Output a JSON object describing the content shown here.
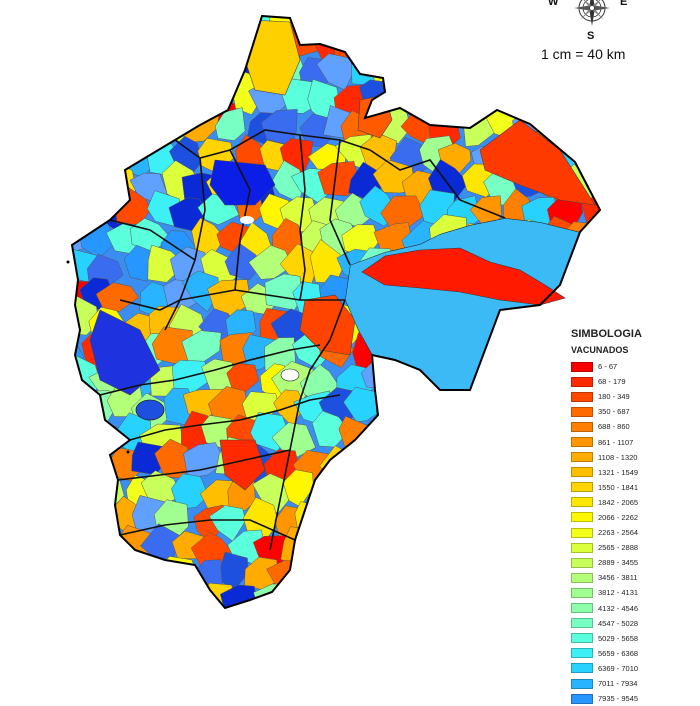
{
  "compass": {
    "west_label": "W",
    "east_label": "E",
    "south_label": "S",
    "north_label": "",
    "icon": "compass-rose-icon"
  },
  "scale": {
    "text": "1 cm = 40 km"
  },
  "legend": {
    "title": "SIMBOLOGIA",
    "subtitle": "VACUNADOS",
    "items": [
      {
        "label": "6 - 67",
        "color": "#ff0000"
      },
      {
        "label": "68 - 179",
        "color": "#ff2a00"
      },
      {
        "label": "180 - 349",
        "color": "#ff4a00"
      },
      {
        "label": "350 - 687",
        "color": "#ff6a00"
      },
      {
        "label": "688 - 860",
        "color": "#ff8000"
      },
      {
        "label": "861 - 1107",
        "color": "#ff9600"
      },
      {
        "label": "1108 - 1320",
        "color": "#ffab00"
      },
      {
        "label": "1321 - 1549",
        "color": "#ffbf00"
      },
      {
        "label": "1550 - 1841",
        "color": "#ffd400"
      },
      {
        "label": "1842 - 2065",
        "color": "#ffe600"
      },
      {
        "label": "2066 - 2262",
        "color": "#fff700"
      },
      {
        "label": "2263 - 2564",
        "color": "#f2ff1a"
      },
      {
        "label": "2565 - 2888",
        "color": "#dcff3c"
      },
      {
        "label": "2889 - 3455",
        "color": "#c8ff5a"
      },
      {
        "label": "3456 - 3811",
        "color": "#b4ff78"
      },
      {
        "label": "3812 - 4131",
        "color": "#a0ff90"
      },
      {
        "label": "4132 - 4546",
        "color": "#8cffaa"
      },
      {
        "label": "4547 - 5028",
        "color": "#78ffc3"
      },
      {
        "label": "5029 - 5658",
        "color": "#5affdc"
      },
      {
        "label": "5659 - 6368",
        "color": "#3cf0f5"
      },
      {
        "label": "6369 - 7010",
        "color": "#28d2ff"
      },
      {
        "label": "7011 - 7934",
        "color": "#28b4ff"
      },
      {
        "label": "7935 - 9545",
        "color": "#2896ff"
      }
    ]
  }
}
